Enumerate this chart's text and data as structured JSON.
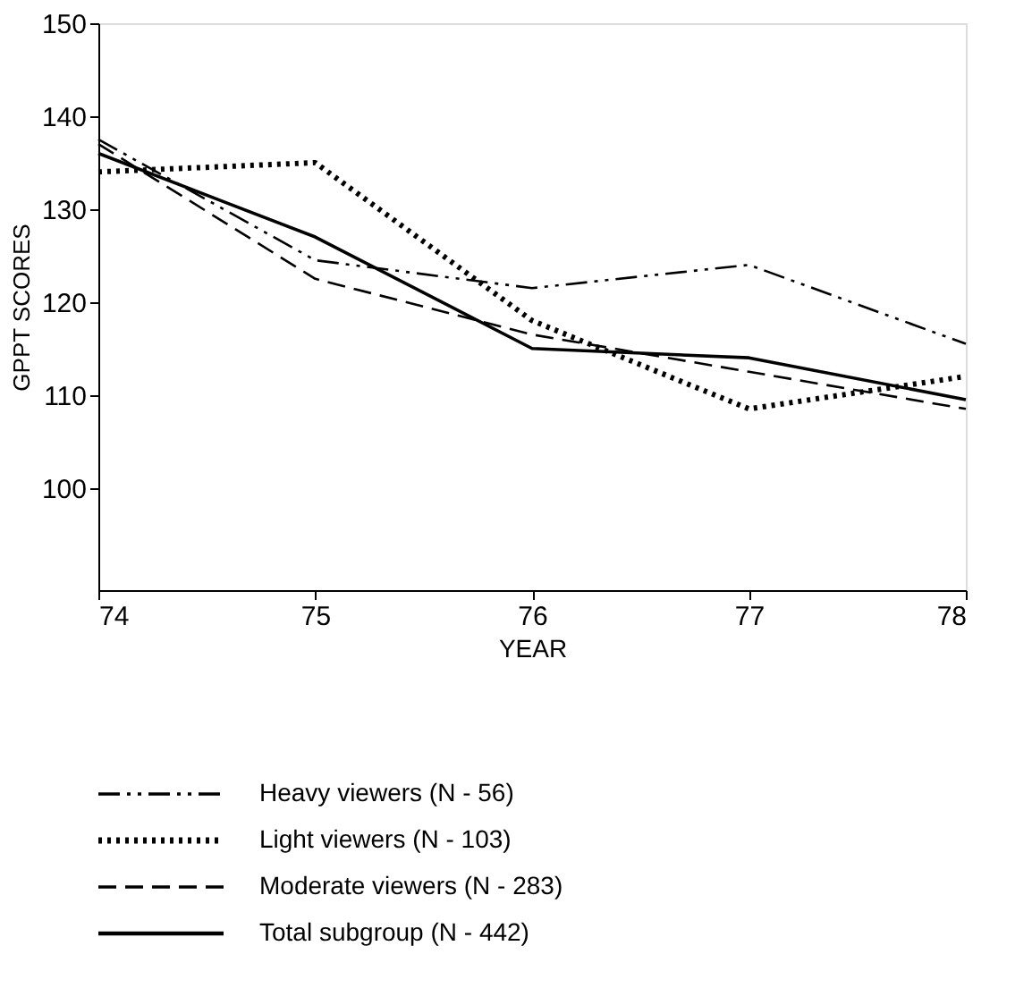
{
  "chart_data": {
    "type": "line",
    "xlabel": "YEAR",
    "ylabel": "GPPT SCORES",
    "x": [
      74,
      75,
      76,
      77,
      78
    ],
    "xlim": [
      74,
      78
    ],
    "xticks": [
      74,
      75,
      76,
      77,
      78
    ],
    "ylim": [
      89,
      150
    ],
    "yticks": [
      100,
      110,
      120,
      130,
      140,
      150
    ],
    "grid": false,
    "legend": "bottom",
    "marker": "none",
    "series": [
      {
        "name": "Heavy viewers (N - 56)",
        "color": "#000000",
        "line_style": "dashdot",
        "values": [
          137.5,
          124.5,
          121.5,
          124,
          115.5
        ]
      },
      {
        "name": "Light viewers (N - 103)",
        "color": "#000000",
        "line_style": "dotted",
        "values": [
          134,
          135,
          118,
          108.5,
          112
        ]
      },
      {
        "name": "Moderate viewers (N - 283)",
        "color": "#000000",
        "line_style": "dashed",
        "values": [
          137,
          122.5,
          116.5,
          112.5,
          108.5
        ]
      },
      {
        "name": "Total subgroup (N - 442)",
        "color": "#000000",
        "line_style": "solid",
        "values": [
          136,
          127,
          115,
          114,
          109.5
        ]
      }
    ]
  }
}
